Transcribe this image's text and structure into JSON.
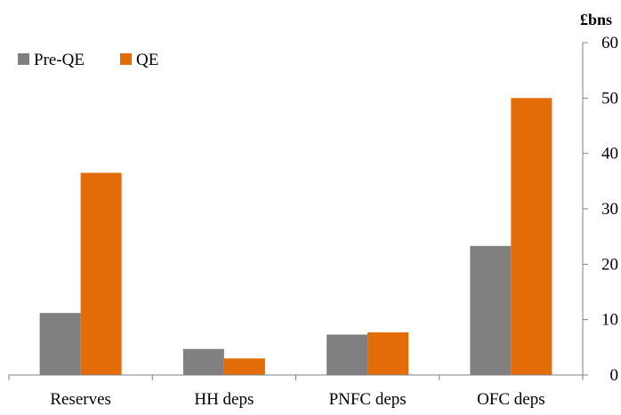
{
  "chart_data": {
    "type": "bar",
    "title": "",
    "xlabel": "",
    "ylabel": "£bns",
    "ylim": [
      0,
      60
    ],
    "yticks": [
      0,
      10,
      20,
      30,
      40,
      50,
      60
    ],
    "y_axis_side": "right",
    "grid": false,
    "legend_position": "top-left",
    "categories": [
      "Reserves",
      "HH deps",
      "PNFC deps",
      "OFC deps"
    ],
    "series": [
      {
        "name": "Pre-QE",
        "color": "#808080",
        "values": [
          11.2,
          4.7,
          7.3,
          23.3
        ]
      },
      {
        "name": "QE",
        "color": "#E36C09",
        "values": [
          36.5,
          3.0,
          7.7,
          50.0
        ]
      }
    ]
  }
}
